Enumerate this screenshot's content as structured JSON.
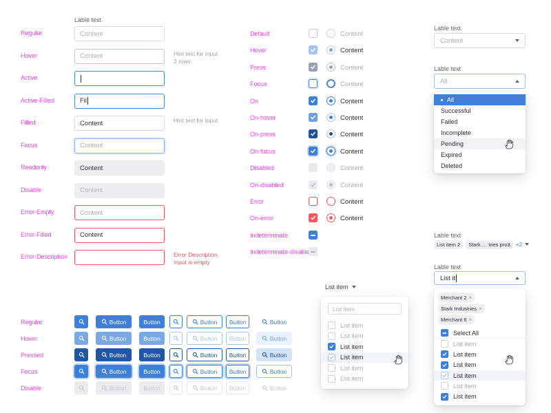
{
  "colors": {
    "primary": "#3d7fd9",
    "primary_hover": "#7aa7e6",
    "primary_pressed": "#1f57a4",
    "error": "#f5565f",
    "state_label": "#f23cf0",
    "selected_row_bg": "#3d7fd9"
  },
  "input_fields": {
    "label": "Lable text",
    "rows": [
      {
        "state": "Regular",
        "variant": "regular",
        "placeholder": "Content"
      },
      {
        "state": "Hover",
        "variant": "hover",
        "placeholder": "Content",
        "hint": "Hint text for input\n2 rows"
      },
      {
        "state": "Active",
        "variant": "active",
        "value": "",
        "caret": true
      },
      {
        "state": "Active-Filled",
        "variant": "active",
        "value": "Fil",
        "caret": true
      },
      {
        "state": "Filled",
        "variant": "regular",
        "value": "Content",
        "hint": "Hint text for input"
      },
      {
        "state": "Focus",
        "variant": "focus",
        "placeholder": "Content"
      },
      {
        "state": "Readonly",
        "variant": "readonly",
        "value": "Content"
      },
      {
        "state": "Disable",
        "variant": "disable",
        "value": "Content"
      },
      {
        "state": "Error-Empty",
        "variant": "error",
        "placeholder": "Content"
      },
      {
        "state": "Error-Filled",
        "variant": "error",
        "value": "Content"
      },
      {
        "state": "Error-Description",
        "variant": "error",
        "hint": "Error Description.\nInput is empty",
        "hint_error": true
      }
    ]
  },
  "selection_controls": {
    "rows": [
      {
        "state": "Default",
        "checkbox": "off",
        "radio": "off",
        "label": "Content",
        "muted": true
      },
      {
        "state": "Hover",
        "checkbox": "hover-fill",
        "radio": "hover",
        "label": "Content",
        "muted": false
      },
      {
        "state": "Press",
        "checkbox": "press-fill",
        "radio": "press",
        "label": "Content",
        "muted": true
      },
      {
        "state": "Focus",
        "checkbox": "focus",
        "radio": "focus",
        "label": "Content",
        "muted": true
      },
      {
        "state": "On",
        "checkbox": "on",
        "radio": "on",
        "label": "Content",
        "muted": false
      },
      {
        "state": "On-hover",
        "checkbox": "on-hover",
        "radio": "on-hover",
        "label": "Content",
        "muted": false
      },
      {
        "state": "On-press",
        "checkbox": "on-press",
        "radio": "on-press",
        "label": "Content",
        "muted": false
      },
      {
        "state": "On-focus",
        "checkbox": "on-focus",
        "radio": "on-focus",
        "label": "Content",
        "muted": false
      },
      {
        "state": "Disabled",
        "checkbox": "disabled",
        "radio": "disabled",
        "label": "Content",
        "muted": true
      },
      {
        "state": "On-disabled",
        "checkbox": "on-disabled",
        "radio": "on-disabled",
        "label": "Content",
        "muted": true
      },
      {
        "state": "Error",
        "checkbox": "error",
        "radio": "error",
        "label": "Content",
        "muted": false
      },
      {
        "state": "On-error",
        "checkbox": "on-error",
        "radio": "on-error",
        "label": "Content",
        "muted": false
      },
      {
        "state": "Indeterminate",
        "checkbox": "indeterminate",
        "radio": null,
        "label": ""
      },
      {
        "state": "Indeterminate-disabled",
        "checkbox": "indeterminate-disabled",
        "radio": null,
        "label": ""
      }
    ]
  },
  "select_basic": {
    "label": "Lable text",
    "value": "Content"
  },
  "select_open": {
    "label": "Lable text",
    "value": "All",
    "options": [
      {
        "label": "All",
        "selected": true
      },
      {
        "label": "Successful"
      },
      {
        "label": "Failed"
      },
      {
        "label": "Incomplete"
      },
      {
        "label": "Pending",
        "hover": true
      },
      {
        "label": "Expired"
      },
      {
        "label": "Deleted"
      }
    ]
  },
  "multiselect_collapsed": {
    "label": "Lable text",
    "tags": [
      "List item 2",
      "Stark … tries pro3"
    ],
    "more": "+2"
  },
  "multiselect_open": {
    "label": "Lable text",
    "query": "List it",
    "tags": [
      "Merchant 2",
      "Stark Industries",
      "Merchant 6"
    ],
    "select_all": "Select All",
    "items": [
      {
        "label": "List item",
        "checkbox": "off",
        "muted": true
      },
      {
        "label": "List item",
        "checkbox": "on",
        "muted": false
      },
      {
        "label": "List item",
        "checkbox": "on",
        "muted": false
      },
      {
        "label": "List item",
        "checkbox": "hover-light",
        "muted": false,
        "hover": true
      },
      {
        "label": "List item",
        "checkbox": "off",
        "muted": true
      },
      {
        "label": "List item",
        "checkbox": "on",
        "muted": false
      }
    ]
  },
  "dropdown_list": {
    "trigger": "List item",
    "search_placeholder": "List item",
    "items": [
      {
        "label": "List item",
        "checkbox": "off",
        "muted": true
      },
      {
        "label": "List item",
        "checkbox": "off",
        "muted": true
      },
      {
        "label": "List item",
        "checkbox": "on",
        "muted": false
      },
      {
        "label": "List item",
        "checkbox": "hover-light",
        "muted": false,
        "hover": true
      },
      {
        "label": "List item",
        "checkbox": "off",
        "muted": true
      },
      {
        "label": "List item",
        "checkbox": "off",
        "muted": true
      }
    ]
  },
  "buttons": {
    "label": "Button",
    "rows": [
      {
        "state": "Regular",
        "variant": "regular"
      },
      {
        "state": "Hover",
        "variant": "hover"
      },
      {
        "state": "Pressed",
        "variant": "pressed"
      },
      {
        "state": "Focus",
        "variant": "focus"
      },
      {
        "state": "Disable",
        "variant": "disable"
      }
    ]
  }
}
